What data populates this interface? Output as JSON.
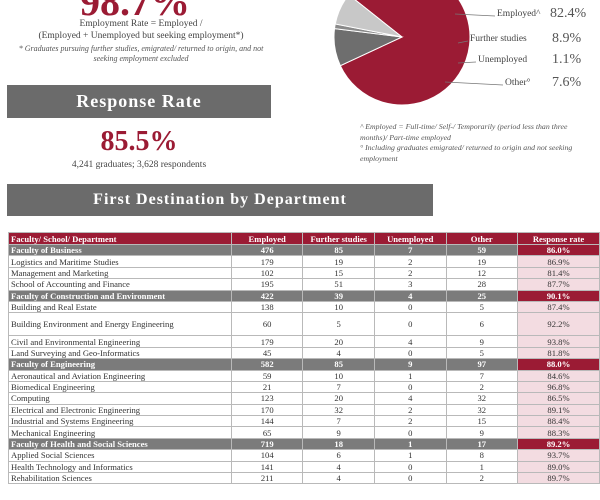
{
  "employment": {
    "rate": "98.7%",
    "definition_line1": "Employment Rate = Employed /",
    "definition_line2": "(Employed + Unemployed but seeking employment*)",
    "note": "* Graduates pursuing further studies, emigrated/ returned to origin, and not seeking employment excluded"
  },
  "response": {
    "heading": "Response Rate",
    "rate": "85.5%",
    "sub": "4,241 graduates; 3,628 respondents"
  },
  "pie": {
    "slices": [
      {
        "label": "Employed^",
        "pct": "82.4%",
        "value": 82.4,
        "color": "#9b1b34"
      },
      {
        "label": "Further studies",
        "pct": "8.9%",
        "value": 8.9,
        "color": "#6e6e6e"
      },
      {
        "label": "Unemployed",
        "pct": "1.1%",
        "value": 1.1,
        "color": "#8a8a8a"
      },
      {
        "label": "Other°",
        "pct": "7.6%",
        "value": 7.6,
        "color": "#c8c8c8"
      }
    ],
    "note1": "^ Employed = Full-time/ Self-/ Temporarily (period less than three months)/ Part-time employed",
    "note2": "° Including graduates emigrated/ returned to origin and not seeking employment"
  },
  "first_destination": {
    "heading": "First Destination by Department",
    "columns": [
      "Faculty/ School/ Department",
      "Employed",
      "Further studies",
      "Unemployed",
      "Other",
      "Response rate"
    ],
    "rows": [
      {
        "type": "faculty",
        "name": "Faculty of Business",
        "employed": "476",
        "further": "85",
        "unemployed": "7",
        "other": "59",
        "rate": "86.0%"
      },
      {
        "type": "dept",
        "name": "Logistics and Maritime Studies",
        "employed": "179",
        "further": "19",
        "unemployed": "2",
        "other": "19",
        "rate": "86.9%"
      },
      {
        "type": "dept",
        "name": "Management and Marketing",
        "employed": "102",
        "further": "15",
        "unemployed": "2",
        "other": "12",
        "rate": "81.4%"
      },
      {
        "type": "dept",
        "name": "School of Accounting and Finance",
        "employed": "195",
        "further": "51",
        "unemployed": "3",
        "other": "28",
        "rate": "87.7%"
      },
      {
        "type": "faculty",
        "name": "Faculty of Construction and Environment",
        "employed": "422",
        "further": "39",
        "unemployed": "4",
        "other": "25",
        "rate": "90.1%"
      },
      {
        "type": "dept",
        "name": "Building and Real Estate",
        "employed": "138",
        "further": "10",
        "unemployed": "0",
        "other": "5",
        "rate": "87.4%"
      },
      {
        "type": "dept",
        "tall": true,
        "name": "Building Environment and Energy Engineering",
        "employed": "60",
        "further": "5",
        "unemployed": "0",
        "other": "6",
        "rate": "92.2%"
      },
      {
        "type": "dept",
        "name": "Civil and Environmental Engineering",
        "employed": "179",
        "further": "20",
        "unemployed": "4",
        "other": "9",
        "rate": "93.8%"
      },
      {
        "type": "dept",
        "name": "Land Surveying and Geo-Informatics",
        "employed": "45",
        "further": "4",
        "unemployed": "0",
        "other": "5",
        "rate": "81.8%"
      },
      {
        "type": "faculty",
        "name": "Faculty of Engineering",
        "employed": "582",
        "further": "85",
        "unemployed": "9",
        "other": "97",
        "rate": "88.0%"
      },
      {
        "type": "dept",
        "name": "Aeronautical and Aviation Engineering",
        "employed": "59",
        "further": "10",
        "unemployed": "1",
        "other": "7",
        "rate": "84.6%"
      },
      {
        "type": "dept",
        "name": "Biomedical Engineering",
        "employed": "21",
        "further": "7",
        "unemployed": "0",
        "other": "2",
        "rate": "96.8%"
      },
      {
        "type": "dept",
        "name": "Computing",
        "employed": "123",
        "further": "20",
        "unemployed": "4",
        "other": "32",
        "rate": "86.5%"
      },
      {
        "type": "dept",
        "name": "Electrical and Electronic Engineering",
        "employed": "170",
        "further": "32",
        "unemployed": "2",
        "other": "32",
        "rate": "89.1%"
      },
      {
        "type": "dept",
        "name": "Industrial and Systems Engineering",
        "employed": "144",
        "further": "7",
        "unemployed": "2",
        "other": "15",
        "rate": "88.4%"
      },
      {
        "type": "dept",
        "name": "Mechanical Engineering",
        "employed": "65",
        "further": "9",
        "unemployed": "0",
        "other": "9",
        "rate": "88.3%"
      },
      {
        "type": "faculty",
        "name": "Faculty of Health and Social Sciences",
        "employed": "719",
        "further": "18",
        "unemployed": "1",
        "other": "17",
        "rate": "89.2%"
      },
      {
        "type": "dept",
        "name": "Applied Social Sciences",
        "employed": "104",
        "further": "6",
        "unemployed": "1",
        "other": "8",
        "rate": "93.7%"
      },
      {
        "type": "dept",
        "name": "Health Technology and Informatics",
        "employed": "141",
        "further": "4",
        "unemployed": "0",
        "other": "1",
        "rate": "89.0%"
      },
      {
        "type": "dept",
        "name": "Rehabilitation Sciences",
        "employed": "211",
        "further": "4",
        "unemployed": "0",
        "other": "2",
        "rate": "89.7%"
      }
    ]
  }
}
